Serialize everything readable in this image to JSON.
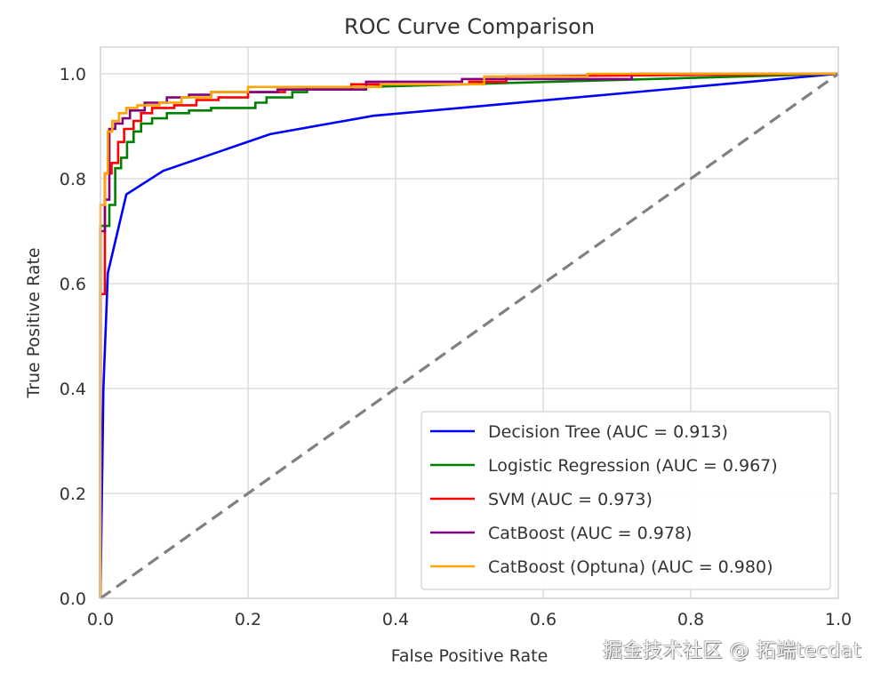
{
  "chart_data": {
    "type": "line",
    "title": "ROC Curve Comparison",
    "xlabel": "False Positive Rate",
    "ylabel": "True Positive Rate",
    "xlim": [
      0.0,
      1.0
    ],
    "ylim": [
      0.0,
      1.0
    ],
    "xticks": [
      "0.0",
      "0.2",
      "0.4",
      "0.6",
      "0.8",
      "1.0"
    ],
    "yticks": [
      "0.0",
      "0.2",
      "0.4",
      "0.6",
      "0.8",
      "1.0"
    ],
    "grid": true,
    "legend_position": "lower-right",
    "series": [
      {
        "name": "Decision Tree",
        "label": "Decision Tree (AUC = 0.913)",
        "auc": 0.913,
        "color": "#0000ff",
        "step": false,
        "x": [
          0.0,
          0.004,
          0.01,
          0.035,
          0.085,
          0.23,
          0.37,
          1.0
        ],
        "y": [
          0.0,
          0.4,
          0.62,
          0.77,
          0.815,
          0.885,
          0.92,
          1.0
        ]
      },
      {
        "name": "Logistic Regression",
        "label": "Logistic Regression (AUC = 0.967)",
        "auc": 0.967,
        "color": "#008000",
        "step": true,
        "x": [
          0.0,
          0.0,
          0.012,
          0.012,
          0.02,
          0.02,
          0.028,
          0.028,
          0.036,
          0.036,
          0.045,
          0.045,
          0.055,
          0.055,
          0.07,
          0.07,
          0.09,
          0.09,
          0.12,
          0.12,
          0.15,
          0.15,
          0.21,
          0.21,
          0.225,
          0.225,
          0.26,
          0.26,
          0.28,
          0.28,
          0.36,
          1.0
        ],
        "y": [
          0.0,
          0.71,
          0.71,
          0.75,
          0.75,
          0.82,
          0.82,
          0.84,
          0.84,
          0.87,
          0.87,
          0.89,
          0.89,
          0.905,
          0.905,
          0.915,
          0.915,
          0.925,
          0.925,
          0.93,
          0.93,
          0.935,
          0.935,
          0.945,
          0.945,
          0.955,
          0.955,
          0.965,
          0.965,
          0.975,
          0.975,
          1.0
        ]
      },
      {
        "name": "SVM",
        "label": "SVM (AUC = 0.973)",
        "auc": 0.973,
        "color": "#ff0000",
        "step": true,
        "x": [
          0.0,
          0.0,
          0.006,
          0.006,
          0.015,
          0.015,
          0.024,
          0.024,
          0.032,
          0.032,
          0.045,
          0.045,
          0.055,
          0.055,
          0.07,
          0.07,
          0.1,
          0.1,
          0.13,
          0.13,
          0.16,
          0.16,
          0.2,
          0.2,
          0.25,
          0.25,
          0.34,
          0.34,
          0.5,
          0.5,
          0.55,
          0.55,
          1.0
        ],
        "y": [
          0.0,
          0.58,
          0.58,
          0.81,
          0.81,
          0.83,
          0.83,
          0.87,
          0.87,
          0.895,
          0.895,
          0.91,
          0.91,
          0.925,
          0.925,
          0.935,
          0.935,
          0.94,
          0.94,
          0.95,
          0.95,
          0.955,
          0.955,
          0.965,
          0.965,
          0.97,
          0.97,
          0.98,
          0.98,
          0.985,
          0.985,
          0.995,
          1.0
        ]
      },
      {
        "name": "CatBoost",
        "label": "CatBoost (AUC = 0.978)",
        "auc": 0.978,
        "color": "#800080",
        "step": true,
        "x": [
          0.0,
          0.0,
          0.006,
          0.006,
          0.012,
          0.012,
          0.02,
          0.02,
          0.03,
          0.03,
          0.04,
          0.04,
          0.06,
          0.06,
          0.09,
          0.09,
          0.12,
          0.12,
          0.15,
          0.15,
          0.24,
          0.24,
          0.36,
          0.36,
          0.49,
          0.49,
          0.72,
          0.72,
          1.0
        ],
        "y": [
          0.0,
          0.7,
          0.7,
          0.76,
          0.76,
          0.895,
          0.895,
          0.905,
          0.905,
          0.915,
          0.915,
          0.93,
          0.93,
          0.945,
          0.945,
          0.955,
          0.955,
          0.96,
          0.96,
          0.965,
          0.965,
          0.97,
          0.97,
          0.985,
          0.985,
          0.99,
          0.99,
          1.0,
          1.0
        ]
      },
      {
        "name": "CatBoost (Optuna)",
        "label": "CatBoost (Optuna) (AUC = 0.980)",
        "auc": 0.98,
        "color": "#ffa500",
        "step": true,
        "x": [
          0.0,
          0.0,
          0.006,
          0.006,
          0.01,
          0.01,
          0.016,
          0.016,
          0.025,
          0.025,
          0.035,
          0.035,
          0.05,
          0.05,
          0.08,
          0.08,
          0.11,
          0.11,
          0.15,
          0.15,
          0.2,
          0.2,
          0.38,
          0.38,
          0.52,
          0.52,
          0.66,
          0.66,
          1.0
        ],
        "y": [
          0.0,
          0.75,
          0.75,
          0.81,
          0.81,
          0.89,
          0.89,
          0.91,
          0.91,
          0.925,
          0.925,
          0.935,
          0.935,
          0.94,
          0.94,
          0.945,
          0.945,
          0.955,
          0.955,
          0.965,
          0.965,
          0.975,
          0.975,
          0.98,
          0.98,
          0.995,
          0.995,
          1.0,
          1.0
        ]
      }
    ],
    "reference_line": {
      "name": "chance",
      "x": [
        0.0,
        1.0
      ],
      "y": [
        0.0,
        1.0
      ],
      "color": "#808080",
      "style": "dashed"
    }
  },
  "watermark": "掘金技术社区 @ 拓端tecdat"
}
